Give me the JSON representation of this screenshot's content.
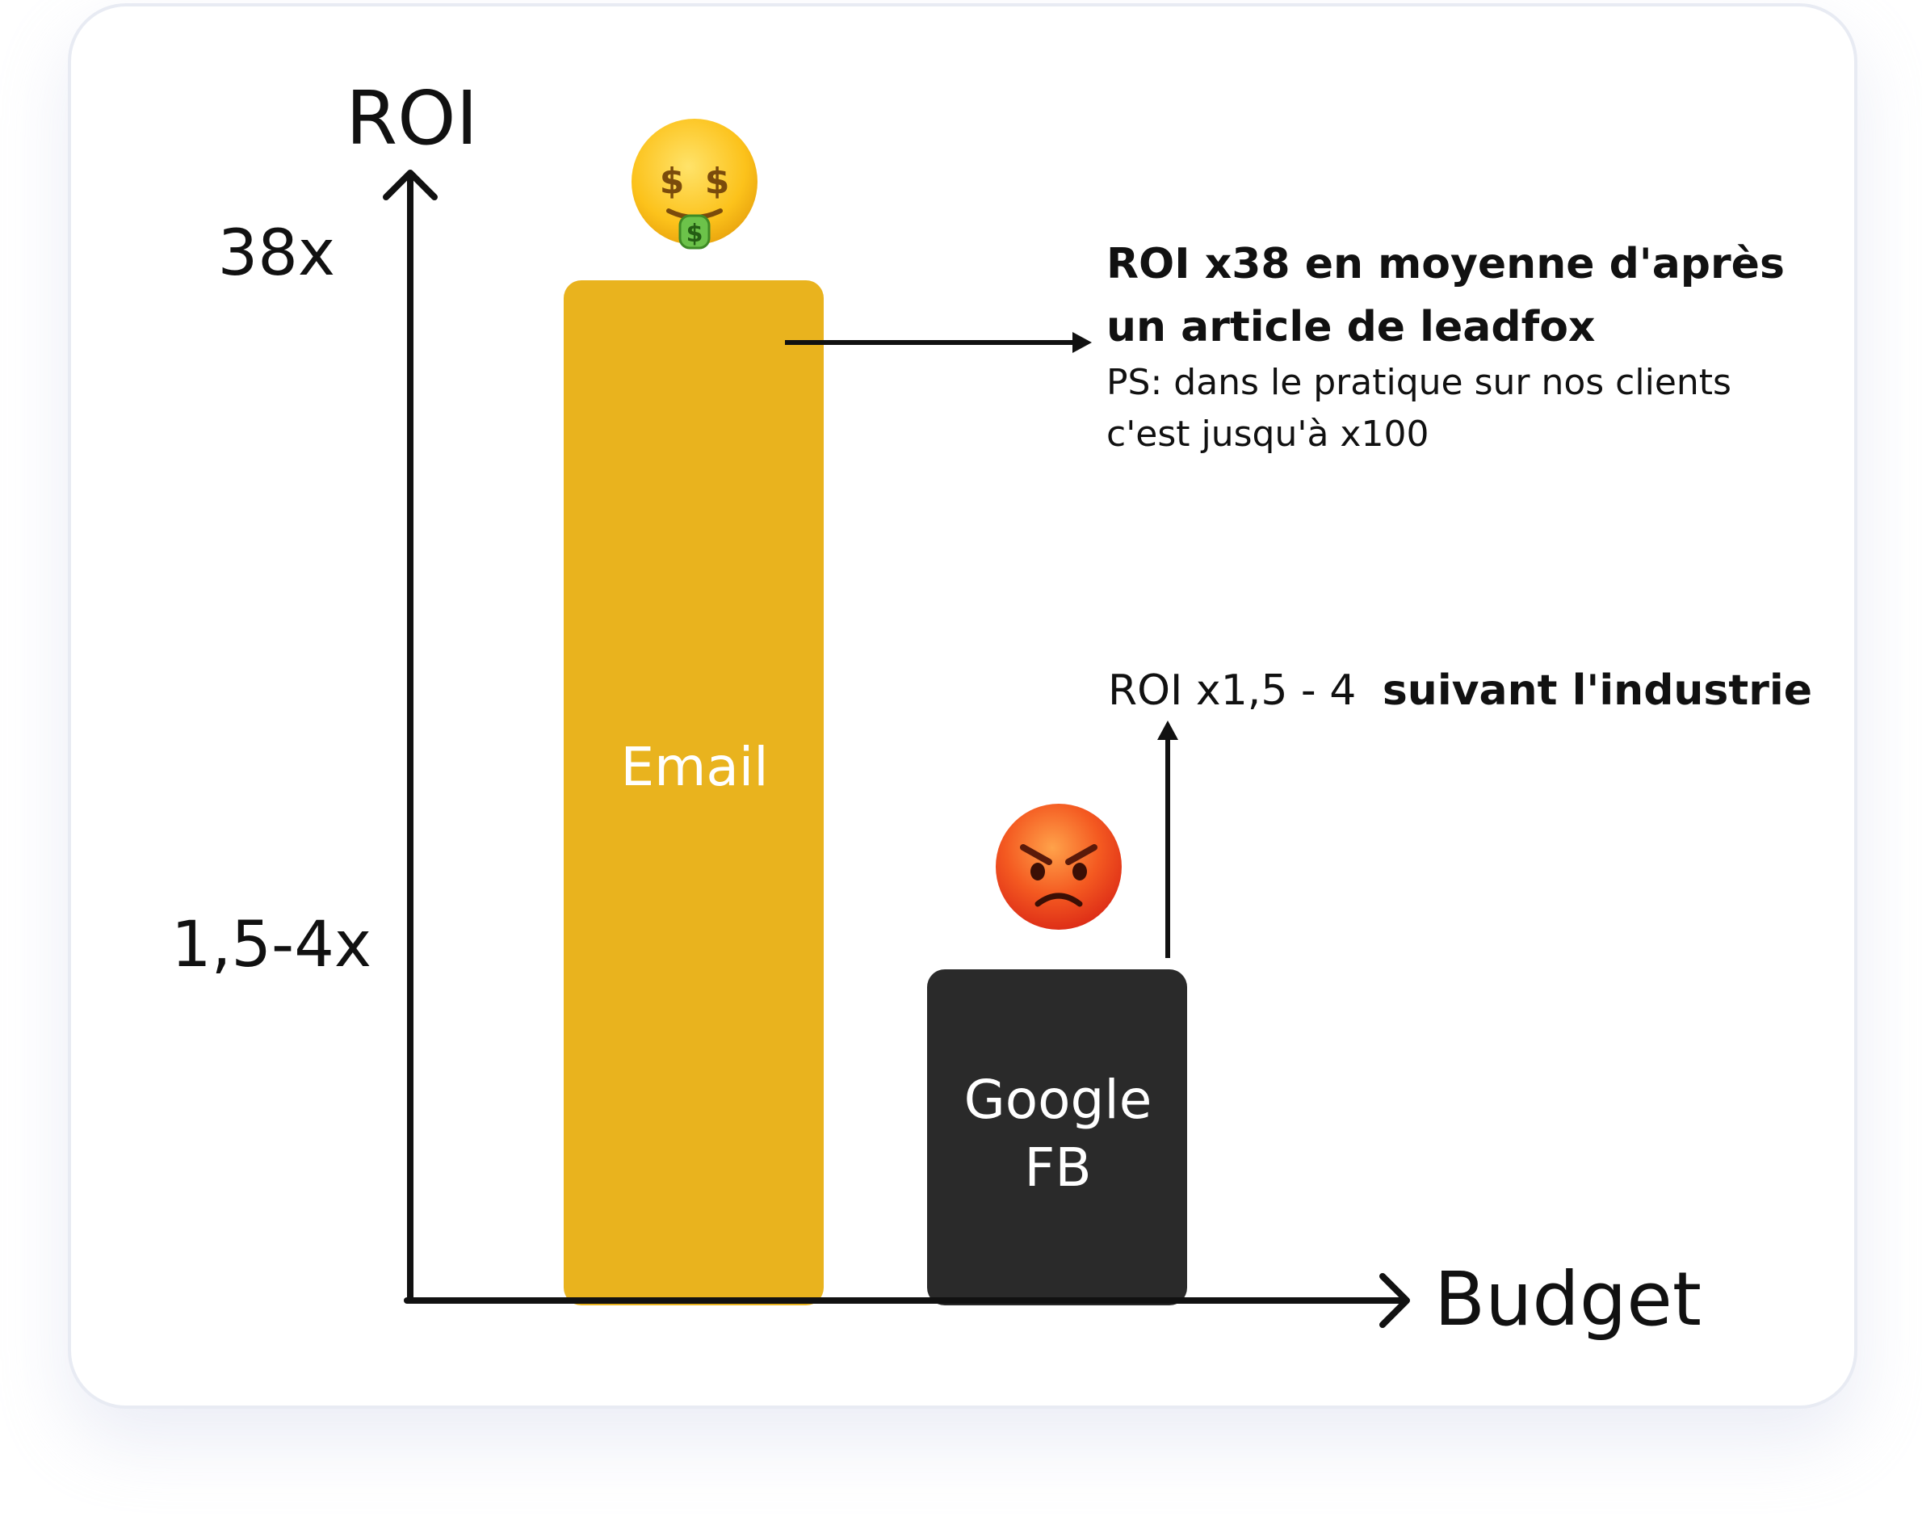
{
  "chart_data": {
    "type": "bar",
    "ylabel": "ROI",
    "xlabel": "Budget",
    "y_ticks": [
      "38x",
      "1,5-4x"
    ],
    "categories": [
      {
        "label_lines": [
          "Email"
        ],
        "value": 38,
        "color": "#e9b31e",
        "icon": "money-mouth-face-icon"
      },
      {
        "label_lines": [
          "Google",
          "FB"
        ],
        "value": 4,
        "color": "#2a2a2a",
        "icon": "angry-face-icon"
      }
    ],
    "annotations": [
      {
        "target": "Email",
        "arrow": "right",
        "bold_lines": [
          "ROI x38 en moyenne d'après",
          "un article de leadfox"
        ],
        "lines": [
          "PS: dans le pratique sur nos clients",
          "c'est jusqu'à x100"
        ]
      },
      {
        "target": "Google FB",
        "arrow": "up",
        "prefix": "ROI x1,5 - 4",
        "bold": "suivant l'industrie"
      }
    ]
  },
  "colors": {
    "axis": "#111111",
    "text": "#111111",
    "bar_label": "#ffffff",
    "card_border": "#e8ebf3",
    "emoji_yellow": "#fcc21b",
    "emoji_red": "#f25022",
    "money_green": "#6cc24a"
  }
}
